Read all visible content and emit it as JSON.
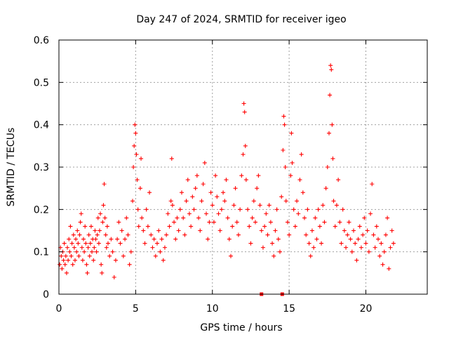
{
  "chart_data": {
    "type": "scatter",
    "title": "Day 247 of 2024, SRMTID for receiver igeo",
    "xlabel": "GPS time / hours",
    "ylabel": "SRMTID / TECUs",
    "xlim": [
      0,
      24
    ],
    "ylim": [
      0,
      0.6
    ],
    "xticks": [
      0,
      5,
      10,
      15,
      20
    ],
    "xtick_labels": [
      "0",
      "5",
      "10",
      "15",
      "20"
    ],
    "yticks": [
      0,
      0.1,
      0.2,
      0.3,
      0.4,
      0.5,
      0.6
    ],
    "ytick_labels": [
      "0",
      "0.1",
      "0.2",
      "0.3",
      "0.4",
      "0.5",
      "0.6"
    ],
    "grid": true,
    "marker": "plus",
    "color": "#ff0000",
    "series": [
      {
        "name": "SRMTID",
        "points": [
          [
            0.05,
            0.07
          ],
          [
            0.1,
            0.11
          ],
          [
            0.15,
            0.09
          ],
          [
            0.2,
            0.06
          ],
          [
            0.25,
            0.1
          ],
          [
            0.3,
            0.08
          ],
          [
            0.35,
            0.12
          ],
          [
            0.4,
            0.07
          ],
          [
            0.45,
            0.09
          ],
          [
            0.5,
            0.05
          ],
          [
            0.55,
            0.11
          ],
          [
            0.6,
            0.08
          ],
          [
            0.65,
            0.13
          ],
          [
            0.7,
            0.1
          ],
          [
            0.75,
            0.16
          ],
          [
            0.8,
            0.09
          ],
          [
            0.85,
            0.12
          ],
          [
            0.9,
            0.07
          ],
          [
            0.95,
            0.14
          ],
          [
            1.0,
            0.11
          ],
          [
            1.05,
            0.08
          ],
          [
            1.1,
            0.13
          ],
          [
            1.15,
            0.1
          ],
          [
            1.2,
            0.15
          ],
          [
            1.25,
            0.12
          ],
          [
            1.3,
            0.09
          ],
          [
            1.35,
            0.14
          ],
          [
            1.4,
            0.17
          ],
          [
            1.45,
            0.19
          ],
          [
            1.5,
            0.11
          ],
          [
            1.55,
            0.08
          ],
          [
            1.6,
            0.13
          ],
          [
            1.65,
            0.1
          ],
          [
            1.7,
            0.16
          ],
          [
            1.75,
            0.12
          ],
          [
            1.8,
            0.07
          ],
          [
            1.85,
            0.05
          ],
          [
            1.9,
            0.11
          ],
          [
            1.95,
            0.14
          ],
          [
            2.0,
            0.09
          ],
          [
            2.05,
            0.12
          ],
          [
            2.1,
            0.16
          ],
          [
            2.15,
            0.1
          ],
          [
            2.2,
            0.13
          ],
          [
            2.25,
            0.08
          ],
          [
            2.3,
            0.11
          ],
          [
            2.35,
            0.15
          ],
          [
            2.4,
            0.13
          ],
          [
            2.45,
            0.1
          ],
          [
            2.5,
            0.14
          ],
          [
            2.55,
            0.18
          ],
          [
            2.6,
            0.12
          ],
          [
            2.65,
            0.15
          ],
          [
            2.7,
            0.19
          ],
          [
            2.75,
            0.07
          ],
          [
            2.8,
            0.05
          ],
          [
            2.85,
            0.17
          ],
          [
            2.9,
            0.21
          ],
          [
            2.95,
            0.26
          ],
          [
            3.0,
            0.18
          ],
          [
            3.05,
            0.14
          ],
          [
            3.1,
            0.11
          ],
          [
            3.15,
            0.16
          ],
          [
            3.2,
            0.12
          ],
          [
            3.3,
            0.09
          ],
          [
            3.4,
            0.13
          ],
          [
            3.5,
            0.1
          ],
          [
            3.6,
            0.04
          ],
          [
            3.7,
            0.08
          ],
          [
            3.8,
            0.13
          ],
          [
            3.9,
            0.17
          ],
          [
            4.0,
            0.12
          ],
          [
            4.1,
            0.15
          ],
          [
            4.2,
            0.09
          ],
          [
            4.3,
            0.13
          ],
          [
            4.4,
            0.18
          ],
          [
            4.5,
            0.14
          ],
          [
            4.6,
            0.07
          ],
          [
            4.7,
            0.1
          ],
          [
            4.8,
            0.22
          ],
          [
            4.85,
            0.3
          ],
          [
            4.9,
            0.35
          ],
          [
            4.95,
            0.4
          ],
          [
            5.0,
            0.38
          ],
          [
            5.05,
            0.33
          ],
          [
            5.1,
            0.27
          ],
          [
            5.15,
            0.2
          ],
          [
            5.2,
            0.16
          ],
          [
            5.3,
            0.25
          ],
          [
            5.35,
            0.32
          ],
          [
            5.4,
            0.18
          ],
          [
            5.5,
            0.15
          ],
          [
            5.6,
            0.12
          ],
          [
            5.7,
            0.2
          ],
          [
            5.8,
            0.16
          ],
          [
            5.9,
            0.24
          ],
          [
            6.0,
            0.14
          ],
          [
            6.1,
            0.11
          ],
          [
            6.2,
            0.13
          ],
          [
            6.3,
            0.09
          ],
          [
            6.4,
            0.12
          ],
          [
            6.5,
            0.15
          ],
          [
            6.6,
            0.1
          ],
          [
            6.7,
            0.13
          ],
          [
            6.8,
            0.08
          ],
          [
            6.9,
            0.11
          ],
          [
            7.0,
            0.14
          ],
          [
            7.1,
            0.19
          ],
          [
            7.2,
            0.16
          ],
          [
            7.3,
            0.22
          ],
          [
            7.35,
            0.32
          ],
          [
            7.4,
            0.21
          ],
          [
            7.5,
            0.17
          ],
          [
            7.6,
            0.13
          ],
          [
            7.7,
            0.18
          ],
          [
            7.8,
            0.15
          ],
          [
            7.9,
            0.2
          ],
          [
            8.0,
            0.24
          ],
          [
            8.1,
            0.18
          ],
          [
            8.2,
            0.14
          ],
          [
            8.3,
            0.22
          ],
          [
            8.4,
            0.27
          ],
          [
            8.5,
            0.19
          ],
          [
            8.6,
            0.16
          ],
          [
            8.7,
            0.23
          ],
          [
            8.8,
            0.2
          ],
          [
            8.9,
            0.25
          ],
          [
            9.0,
            0.28
          ],
          [
            9.1,
            0.18
          ],
          [
            9.2,
            0.15
          ],
          [
            9.3,
            0.22
          ],
          [
            9.4,
            0.26
          ],
          [
            9.5,
            0.31
          ],
          [
            9.6,
            0.19
          ],
          [
            9.7,
            0.13
          ],
          [
            9.8,
            0.17
          ],
          [
            9.9,
            0.24
          ],
          [
            10.0,
            0.21
          ],
          [
            10.1,
            0.17
          ],
          [
            10.2,
            0.28
          ],
          [
            10.3,
            0.23
          ],
          [
            10.4,
            0.19
          ],
          [
            10.5,
            0.15
          ],
          [
            10.6,
            0.2
          ],
          [
            10.7,
            0.24
          ],
          [
            10.8,
            0.22
          ],
          [
            10.9,
            0.27
          ],
          [
            11.0,
            0.18
          ],
          [
            11.1,
            0.13
          ],
          [
            11.2,
            0.09
          ],
          [
            11.3,
            0.16
          ],
          [
            11.4,
            0.21
          ],
          [
            11.5,
            0.25
          ],
          [
            11.6,
            0.17
          ],
          [
            11.7,
            0.14
          ],
          [
            11.8,
            0.2
          ],
          [
            11.9,
            0.28
          ],
          [
            12.0,
            0.33
          ],
          [
            12.05,
            0.45
          ],
          [
            12.1,
            0.43
          ],
          [
            12.15,
            0.35
          ],
          [
            12.2,
            0.27
          ],
          [
            12.3,
            0.2
          ],
          [
            12.4,
            0.16
          ],
          [
            12.5,
            0.12
          ],
          [
            12.6,
            0.18
          ],
          [
            12.7,
            0.22
          ],
          [
            12.8,
            0.17
          ],
          [
            12.9,
            0.25
          ],
          [
            13.0,
            0.28
          ],
          [
            13.1,
            0.21
          ],
          [
            13.2,
            0.15
          ],
          [
            13.3,
            0.11
          ],
          [
            13.4,
            0.16
          ],
          [
            13.5,
            0.19
          ],
          [
            13.6,
            0.14
          ],
          [
            13.7,
            0.21
          ],
          [
            13.8,
            0.17
          ],
          [
            13.9,
            0.12
          ],
          [
            14.0,
            0.09
          ],
          [
            14.1,
            0.15
          ],
          [
            14.2,
            0.2
          ],
          [
            14.3,
            0.13
          ],
          [
            14.4,
            0.1
          ],
          [
            14.5,
            0.23
          ],
          [
            14.6,
            0.34
          ],
          [
            14.65,
            0.42
          ],
          [
            14.7,
            0.4
          ],
          [
            14.75,
            0.3
          ],
          [
            14.8,
            0.22
          ],
          [
            14.9,
            0.17
          ],
          [
            15.0,
            0.14
          ],
          [
            15.1,
            0.28
          ],
          [
            15.15,
            0.38
          ],
          [
            15.2,
            0.31
          ],
          [
            15.3,
            0.2
          ],
          [
            15.4,
            0.16
          ],
          [
            15.5,
            0.22
          ],
          [
            15.6,
            0.19
          ],
          [
            15.7,
            0.27
          ],
          [
            15.8,
            0.33
          ],
          [
            15.9,
            0.24
          ],
          [
            16.0,
            0.18
          ],
          [
            16.1,
            0.14
          ],
          [
            16.2,
            0.2
          ],
          [
            16.3,
            0.12
          ],
          [
            16.4,
            0.09
          ],
          [
            16.5,
            0.15
          ],
          [
            16.6,
            0.11
          ],
          [
            16.7,
            0.18
          ],
          [
            16.8,
            0.13
          ],
          [
            16.9,
            0.2
          ],
          [
            17.0,
            0.16
          ],
          [
            17.1,
            0.12
          ],
          [
            17.2,
            0.21
          ],
          [
            17.3,
            0.17
          ],
          [
            17.4,
            0.25
          ],
          [
            17.5,
            0.3
          ],
          [
            17.6,
            0.38
          ],
          [
            17.65,
            0.47
          ],
          [
            17.7,
            0.54
          ],
          [
            17.75,
            0.53
          ],
          [
            17.8,
            0.4
          ],
          [
            17.85,
            0.32
          ],
          [
            17.9,
            0.22
          ],
          [
            18.0,
            0.16
          ],
          [
            18.1,
            0.21
          ],
          [
            18.2,
            0.27
          ],
          [
            18.3,
            0.17
          ],
          [
            18.4,
            0.12
          ],
          [
            18.5,
            0.2
          ],
          [
            18.6,
            0.15
          ],
          [
            18.7,
            0.11
          ],
          [
            18.8,
            0.14
          ],
          [
            18.9,
            0.17
          ],
          [
            19.0,
            0.13
          ],
          [
            19.1,
            0.1
          ],
          [
            19.2,
            0.15
          ],
          [
            19.3,
            0.12
          ],
          [
            19.4,
            0.08
          ],
          [
            19.5,
            0.13
          ],
          [
            19.6,
            0.16
          ],
          [
            19.7,
            0.11
          ],
          [
            19.8,
            0.14
          ],
          [
            19.9,
            0.18
          ],
          [
            20.0,
            0.12
          ],
          [
            20.1,
            0.15
          ],
          [
            20.2,
            0.1
          ],
          [
            20.3,
            0.19
          ],
          [
            20.4,
            0.26
          ],
          [
            20.5,
            0.14
          ],
          [
            20.6,
            0.11
          ],
          [
            20.7,
            0.16
          ],
          [
            20.8,
            0.13
          ],
          [
            20.9,
            0.09
          ],
          [
            21.0,
            0.12
          ],
          [
            21.1,
            0.07
          ],
          [
            21.2,
            0.1
          ],
          [
            21.3,
            0.14
          ],
          [
            21.4,
            0.18
          ],
          [
            21.5,
            0.06
          ],
          [
            21.6,
            0.11
          ],
          [
            21.7,
            0.15
          ],
          [
            21.8,
            0.12
          ]
        ],
        "zero_markers": [
          13.2,
          14.55
        ]
      }
    ]
  }
}
